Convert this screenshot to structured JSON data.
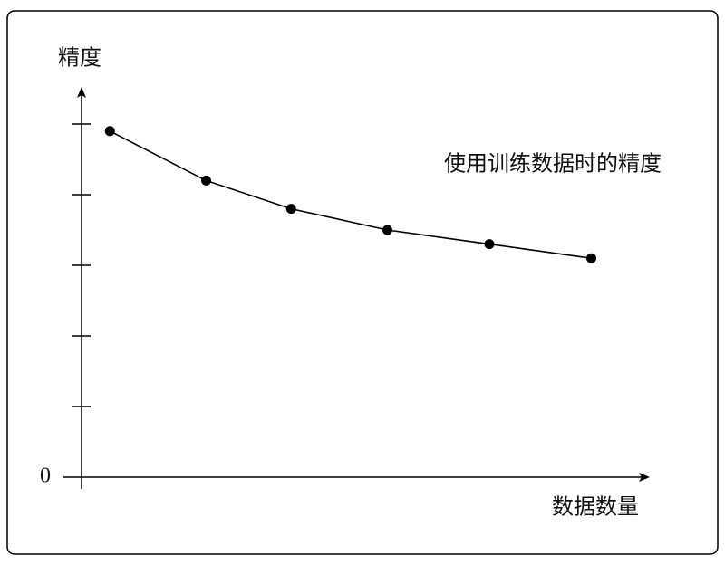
{
  "chart_data": {
    "type": "line",
    "ylabel": "精度",
    "xlabel": "数据数量",
    "annotation": "使用训练数据时的精度",
    "x": [
      0.5,
      2.2,
      3.7,
      5.4,
      7.2,
      9.0
    ],
    "values": [
      4.9,
      4.2,
      3.8,
      3.5,
      3.3,
      3.1
    ],
    "color": "#000000",
    "xlim": [
      0,
      10
    ],
    "ylim": [
      0,
      5.5
    ],
    "yticks": [
      0,
      {
        "value": 1,
        "label": null
      },
      {
        "value": 2,
        "label": null
      },
      {
        "value": 3,
        "label": null
      },
      {
        "value": 4,
        "label": null
      },
      {
        "value": 5,
        "label": null
      }
    ],
    "grid": false
  }
}
